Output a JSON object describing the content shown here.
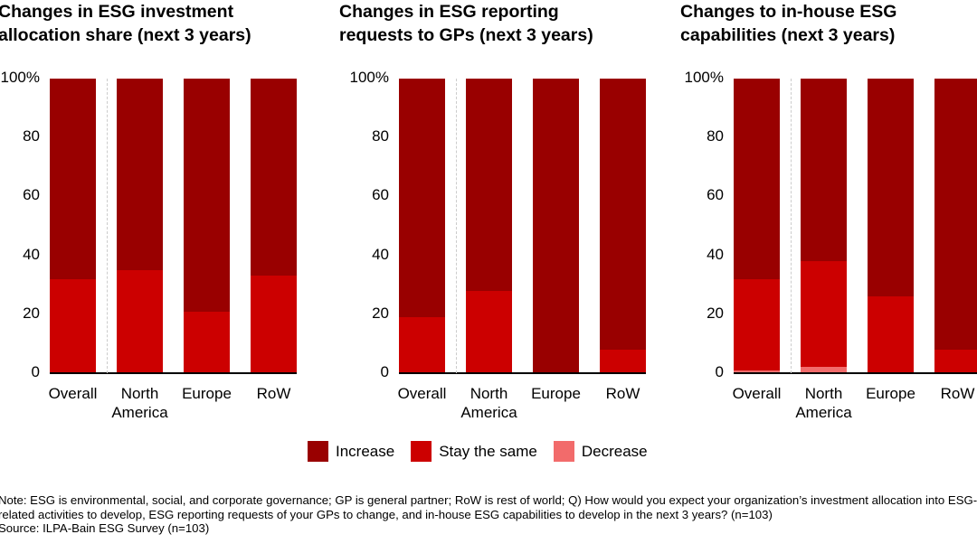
{
  "colors": {
    "increase": "#990000",
    "stay": "#cc0000",
    "decrease": "#f26b6b"
  },
  "chart_data": [
    {
      "type": "bar",
      "stacked": true,
      "title": "Changes in ESG investment allocation share (next 3 years)",
      "title_lines": [
        "Changes in ESG investment",
        "allocation share (next 3 years)"
      ],
      "categories": [
        "Overall",
        "North America",
        "Europe",
        "RoW"
      ],
      "category_lines": [
        [
          "Overall"
        ],
        [
          "North",
          "America"
        ],
        [
          "Europe"
        ],
        [
          "RoW"
        ]
      ],
      "ylim": [
        0,
        100
      ],
      "yticks": [
        "0",
        "20",
        "40",
        "60",
        "80",
        "100%"
      ],
      "series": [
        {
          "name": "Decrease",
          "values": [
            0,
            0,
            0,
            0
          ]
        },
        {
          "name": "Stay the same",
          "values": [
            32,
            35,
            21,
            33
          ]
        },
        {
          "name": "Increase",
          "values": [
            68,
            65,
            79,
            67
          ]
        }
      ]
    },
    {
      "type": "bar",
      "stacked": true,
      "title": "Changes in ESG reporting requests to GPs (next 3 years)",
      "title_lines": [
        "Changes in ESG reporting",
        "requests to GPs (next 3 years)"
      ],
      "categories": [
        "Overall",
        "North America",
        "Europe",
        "RoW"
      ],
      "category_lines": [
        [
          "Overall"
        ],
        [
          "North",
          "America"
        ],
        [
          "Europe"
        ],
        [
          "RoW"
        ]
      ],
      "ylim": [
        0,
        100
      ],
      "yticks": [
        "0",
        "20",
        "40",
        "60",
        "80",
        "100%"
      ],
      "series": [
        {
          "name": "Decrease",
          "values": [
            0,
            0,
            0,
            0
          ]
        },
        {
          "name": "Stay the same",
          "values": [
            19,
            28,
            0,
            8
          ]
        },
        {
          "name": "Increase",
          "values": [
            81,
            72,
            100,
            92
          ]
        }
      ]
    },
    {
      "type": "bar",
      "stacked": true,
      "title": "Changes to in-house ESG capabilities (next 3 years)",
      "title_lines": [
        "Changes to in-house ESG",
        "capabilities (next 3 years)"
      ],
      "categories": [
        "Overall",
        "North America",
        "Europe",
        "RoW"
      ],
      "category_lines": [
        [
          "Overall"
        ],
        [
          "North",
          "America"
        ],
        [
          "Europe"
        ],
        [
          "RoW"
        ]
      ],
      "ylim": [
        0,
        100
      ],
      "yticks": [
        "0",
        "20",
        "40",
        "60",
        "80",
        "100%"
      ],
      "series": [
        {
          "name": "Decrease",
          "values": [
            1,
            2,
            0,
            0
          ]
        },
        {
          "name": "Stay the same",
          "values": [
            31,
            36,
            26,
            8
          ]
        },
        {
          "name": "Increase",
          "values": [
            68,
            62,
            74,
            92
          ]
        }
      ]
    }
  ],
  "legend": [
    {
      "label": "Increase",
      "key": "increase"
    },
    {
      "label": "Stay the same",
      "key": "stay"
    },
    {
      "label": "Decrease",
      "key": "decrease"
    }
  ],
  "notes": {
    "note": "Note: ESG is environmental, social, and corporate governance; GP is general partner; RoW is rest of world; Q) How would you expect your organization’s investment allocation into ESG-related activities to develop, ESG reporting requests of your GPs to change, and in-house ESG capabilities to develop in the next 3 years? (n=103)",
    "source": "Source: ILPA-Bain ESG Survey (n=103)"
  }
}
